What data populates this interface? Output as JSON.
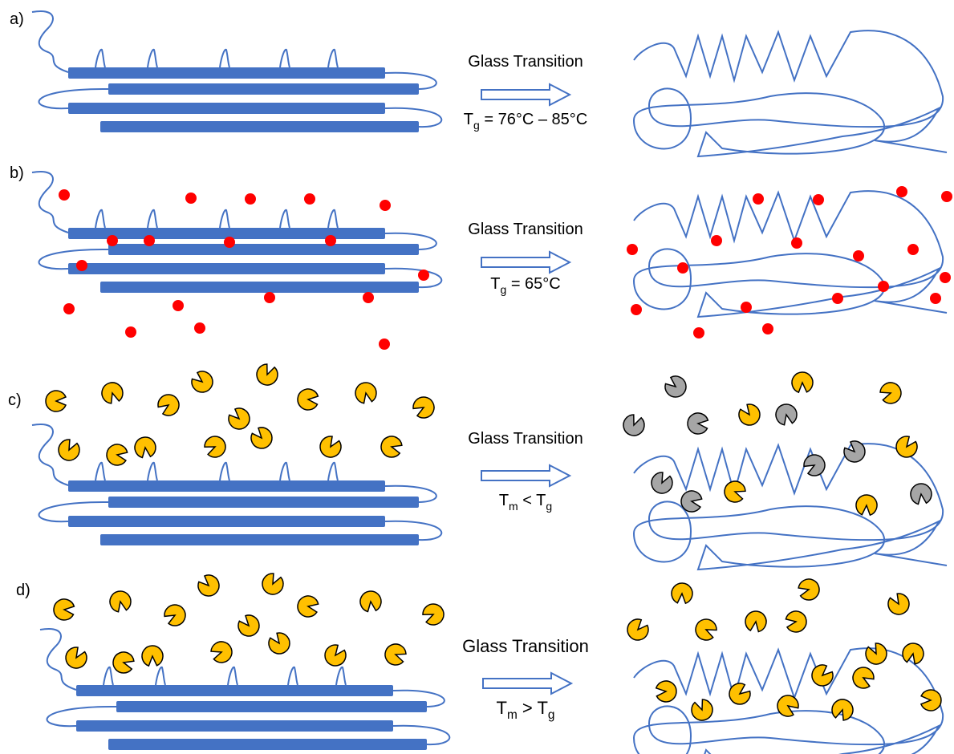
{
  "panels": [
    {
      "label": "a)",
      "transition": "Glass Transition",
      "condition": [
        "T",
        "g",
        " = 76°C – 85°C"
      ]
    },
    {
      "label": "b)",
      "transition": "Glass Transition",
      "condition": [
        "T",
        "g",
        " = 65°C"
      ]
    },
    {
      "label": "c)",
      "transition": "Glass Transition",
      "condition": [
        "T",
        "m",
        " < T",
        "g"
      ]
    },
    {
      "label": "d)",
      "transition": "Glass Transition",
      "condition": [
        "T",
        "m",
        " > T",
        "g"
      ]
    }
  ]
}
